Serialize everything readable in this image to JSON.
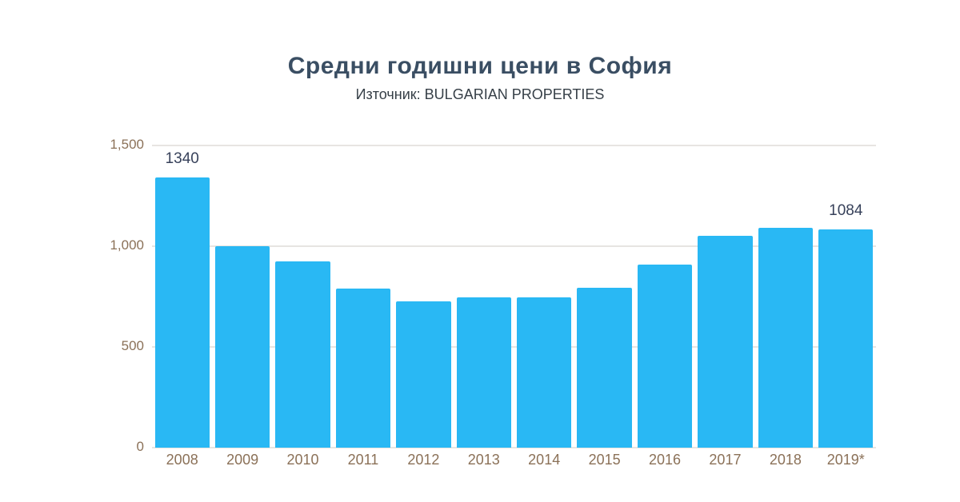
{
  "chart": {
    "title": "Средни годишни цени в София",
    "subtitle": "Източник: BULGARIAN PROPERTIES"
  },
  "chart_data": {
    "type": "bar",
    "title": "Средни годишни цени в София",
    "subtitle": "Източник: BULGARIAN PROPERTIES",
    "categories": [
      "2008",
      "2009",
      "2010",
      "2011",
      "2012",
      "2013",
      "2014",
      "2015",
      "2016",
      "2017",
      "2018",
      "2019*"
    ],
    "values": [
      1340,
      1000,
      925,
      790,
      725,
      745,
      745,
      795,
      910,
      1050,
      1090,
      1084
    ],
    "bar_labels": [
      "1340",
      null,
      null,
      null,
      null,
      null,
      null,
      null,
      null,
      null,
      null,
      "1084"
    ],
    "ylim": [
      0,
      1500
    ],
    "yticks": [
      0,
      500,
      1000,
      1500
    ],
    "ytick_labels": [
      "0",
      "500",
      "1,000",
      "1,500"
    ],
    "grid": true,
    "legend": false,
    "xlabel": "",
    "ylabel": "",
    "colors": {
      "bar": "#29b8f4",
      "title": "#3a4e63",
      "subtitle": "#363f47",
      "axis_labels": "#8b7158",
      "data_labels": "#37415a",
      "gridline": "#e7e5e2",
      "background": "#ffffff"
    }
  }
}
